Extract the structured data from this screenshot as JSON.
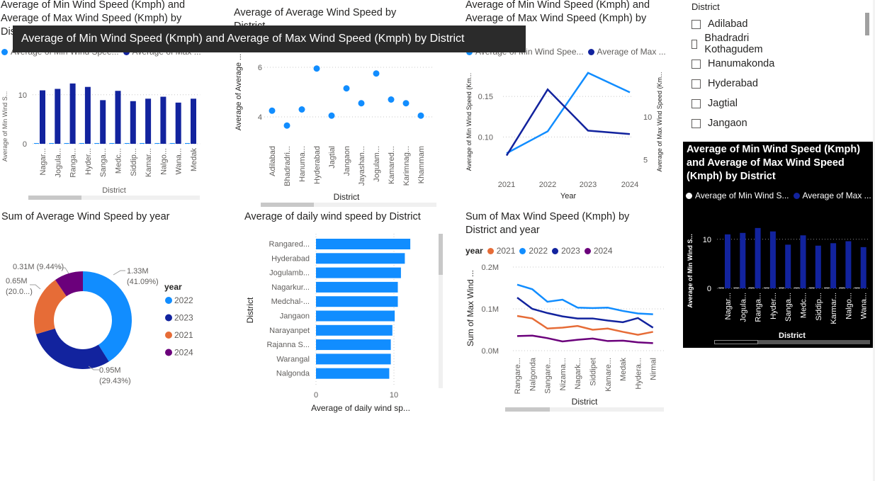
{
  "colors": {
    "light_blue": "#118DFF",
    "dark_blue": "#12239E",
    "orange": "#E66C37",
    "purple": "#6B007B",
    "gridline": "#c8c8c8"
  },
  "tooltip": {
    "text": "Average of Min Wind Speed (Kmph) and Average of Max Wind Speed (Kmph) by District"
  },
  "v1": {
    "title_l1": "Average of Min Wind Speed (Kmph) and",
    "title_l2": "Average of Max Wind Speed (Kmph) by",
    "title_l3": "Distr",
    "legend_min": "Average of Min Wind Spee...",
    "legend_max": "Average of Max ...",
    "ylabel": "Average of Min Wind S...",
    "xlabel": "District",
    "ytick0": "0",
    "ytick10": "10",
    "chart_data": {
      "type": "bar",
      "categories": [
        "Nagar...",
        "Jogula...",
        "Ranga...",
        "Hyder...",
        "Sanga...",
        "Medc...",
        "Siddip...",
        "Kamar...",
        "Nalgo...",
        "Wana...",
        "Medak"
      ],
      "series": [
        {
          "name": "Average of Min Wind Speed (Kmph)",
          "values": [
            0.15,
            0.15,
            0.15,
            0.15,
            0.15,
            0.15,
            0.15,
            0.15,
            0.15,
            0.15,
            0.15
          ]
        },
        {
          "name": "Average of Max Wind Speed (Kmph)",
          "values": [
            10.9,
            11.2,
            12.3,
            11.6,
            8.9,
            10.8,
            8.7,
            9.2,
            9.6,
            8.4,
            9.2
          ]
        }
      ],
      "ylim": [
        0,
        13
      ]
    }
  },
  "v2": {
    "title_l1": "Average of Average Wind Speed by",
    "title_l2": "District",
    "ylabel": "Average of Average ...",
    "xlabel": "District",
    "ytick4": "4",
    "ytick6": "6",
    "chart_data": {
      "type": "scatter",
      "categories": [
        "Adilabad",
        "Bhadradri...",
        "Hanuma...",
        "Hyderabad",
        "Jagtial",
        "Jangaon",
        "Jayashan...",
        "Jogulam...",
        "Kamared...",
        "Karimnag...",
        "Khammam"
      ],
      "values": [
        4.25,
        3.65,
        4.3,
        5.95,
        4.05,
        5.15,
        4.55,
        5.75,
        4.7,
        4.55,
        4.05
      ],
      "ylim": [
        3.2,
        6.6
      ]
    }
  },
  "v3": {
    "title_l1": "Average of Min Wind Speed (Kmph) and",
    "title_l2": "Average of Max Wind Speed (Kmph) by",
    "legend_min": "Average of Min Wind Spee...",
    "legend_max": "Average of Max ...",
    "ylabel_left": "Average of Min Wind Speed (Km...",
    "ylabel_right": "Average of Max Wind Speed (Km...",
    "xlabel": "Year",
    "yl_010": "0.10",
    "yl_015": "0.15",
    "yr_5": "5",
    "yr_10": "10",
    "chart_data": {
      "type": "line",
      "x": [
        "2021",
        "2022",
        "2023",
        "2024"
      ],
      "series": [
        {
          "name": "Average of Min Wind Speed (Kmph)",
          "axis": "left",
          "values": [
            0.08,
            0.107,
            0.179,
            0.155
          ]
        },
        {
          "name": "Average of Max Wind Speed (Kmph)",
          "axis": "right",
          "values": [
            5.5,
            13.2,
            8.4,
            8.0
          ]
        }
      ],
      "ylim_left": [
        0.055,
        0.185
      ],
      "ylim_right": [
        3.4,
        15.7
      ]
    }
  },
  "slicer": {
    "title": "District",
    "items": [
      "Adilabad",
      "Bhadradri Kothagudem",
      "Hanumakonda",
      "Hyderabad",
      "Jagtial",
      "Jangaon"
    ]
  },
  "focus": {
    "title": "Average of Min Wind Speed (Kmph) and Average of Max Wind Speed (Kmph) by District",
    "legend_min": "Average of Min Wind S...",
    "legend_max": "Average of Max ...",
    "ylabel": "Average of Min Wind S...",
    "xlabel": "District",
    "ytick0": "0",
    "ytick10": "10",
    "chart_data": {
      "type": "bar",
      "categories": [
        "Nagar...",
        "Jogula...",
        "Ranga...",
        "Hyder...",
        "Sanga...",
        "Medc...",
        "Siddip...",
        "Karmar...",
        "Nalgo...",
        "Wana..."
      ],
      "series": [
        {
          "name": "Average of Min Wind Speed (Kmph)",
          "values": [
            0.15,
            0.15,
            0.15,
            0.15,
            0.15,
            0.15,
            0.15,
            0.15,
            0.15,
            0.15
          ]
        },
        {
          "name": "Average of Max Wind Speed (Kmph)",
          "values": [
            11.0,
            11.3,
            12.3,
            11.6,
            8.9,
            10.8,
            8.7,
            9.2,
            9.6,
            8.4
          ]
        }
      ],
      "ylim": [
        0,
        13
      ]
    }
  },
  "v4": {
    "title": "Sum of Average Wind Speed by year",
    "legend_title": "year",
    "chart_data": {
      "type": "pie",
      "categories": [
        "2022",
        "2023",
        "2021",
        "2024"
      ],
      "values": [
        1.33,
        0.95,
        0.65,
        0.31
      ],
      "labels": [
        "1.33M\n(41.09%)",
        "0.95M\n(29.43%)",
        "0.65M\n(20.0...)",
        "0.31M (9.44%)"
      ]
    },
    "label_2022_a": "1.33M",
    "label_2022_b": "(41.09%)",
    "label_2023_a": "0.95M",
    "label_2023_b": "(29.43%)",
    "label_2021_a": "0.65M",
    "label_2021_b": "(20.0...)",
    "label_2024": "0.31M (9.44%)"
  },
  "v5": {
    "title": "Average of daily wind speed by District",
    "ylabel": "District",
    "xlabel": "Average of daily wind sp...",
    "xtick0": "0",
    "xtick10": "10",
    "chart_data": {
      "type": "bar",
      "orientation": "horizontal",
      "categories": [
        "Rangared...",
        "Hyderabad",
        "Jogulamb...",
        "Nagarkur...",
        "Medchal-...",
        "Jangaon",
        "Narayanpet",
        "Rajanna S...",
        "Warangal",
        "Nalgonda"
      ],
      "values": [
        12.1,
        11.4,
        10.9,
        10.5,
        10.5,
        10.1,
        9.8,
        9.6,
        9.6,
        9.4
      ],
      "xlim": [
        0,
        13
      ]
    }
  },
  "v6": {
    "title_l1": "Sum of Max Wind Speed (Kmph) by",
    "title_l2": "District and year",
    "legend_title": "year",
    "ylabel": "Sum of Max Wind ...",
    "xlabel": "District",
    "ytick0": "0.0M",
    "ytick1": "0.1M",
    "ytick2": "0.2M",
    "chart_data": {
      "type": "line",
      "x": [
        "Rangare...",
        "Nalgonda",
        "Sangare...",
        "Nizama...",
        "Nagark...",
        "Siddipet",
        "Kamare...",
        "Medak",
        "Hydera...",
        "Nirmal"
      ],
      "series": [
        {
          "name": "2021",
          "values": [
            0.083,
            0.077,
            0.053,
            0.055,
            0.059,
            0.05,
            0.053,
            0.045,
            0.038,
            0.045
          ]
        },
        {
          "name": "2022",
          "values": [
            0.158,
            0.147,
            0.117,
            0.122,
            0.103,
            0.102,
            0.103,
            0.095,
            0.089,
            0.087
          ]
        },
        {
          "name": "2023",
          "values": [
            0.127,
            0.1,
            0.09,
            0.082,
            0.077,
            0.077,
            0.072,
            0.068,
            0.078,
            0.055
          ]
        },
        {
          "name": "2024",
          "values": [
            0.035,
            0.036,
            0.03,
            0.022,
            0.026,
            0.029,
            0.023,
            0.024,
            0.02,
            0.018
          ]
        }
      ],
      "ylim": [
        0,
        0.2
      ]
    }
  }
}
